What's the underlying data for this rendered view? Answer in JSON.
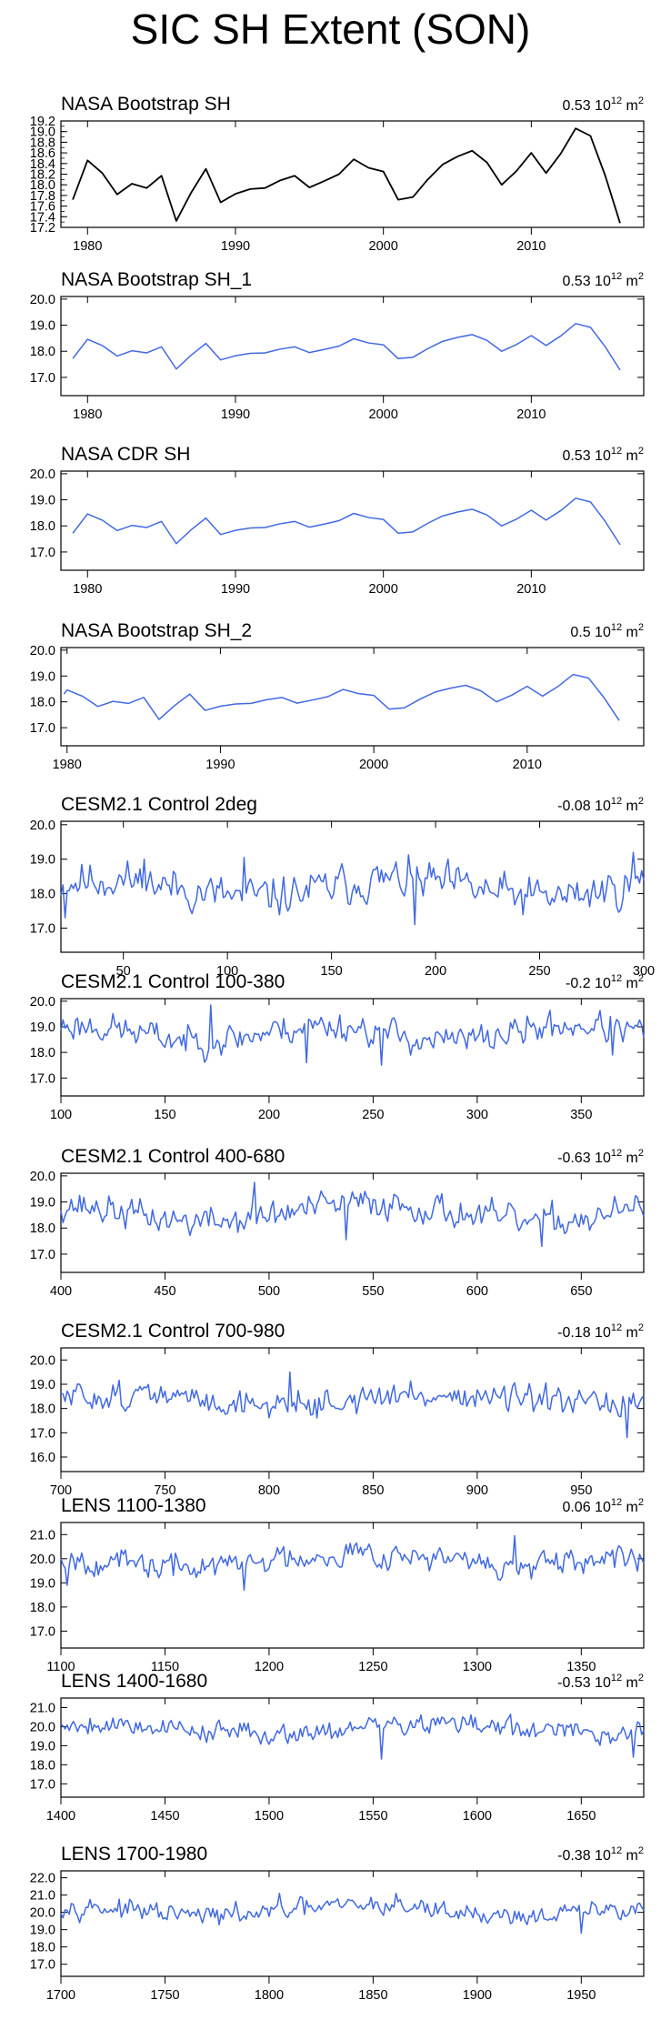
{
  "figure_title": "SIC SH Extent (SON)",
  "chart_data": [
    {
      "type": "line",
      "title": "NASA Bootstrap SH",
      "trend_value": "0.53",
      "trend_unit": "10",
      "trend_exp": "12",
      "trend_unit2": " m",
      "trend_unit2_exp": "2",
      "color": "#000000",
      "xlim": [
        1978.2,
        2017.6
      ],
      "ylim": [
        17.2,
        19.2
      ],
      "yticks": [
        "17.2",
        "17.4",
        "17.6",
        "17.8",
        "18.0",
        "18.2",
        "18.4",
        "18.6",
        "18.8",
        "19.0",
        "19.2"
      ],
      "xticks": [
        "1980",
        "1990",
        "2000",
        "2010"
      ],
      "x": [
        1979,
        1980,
        1981,
        1982,
        1983,
        1984,
        1985,
        1986,
        1987,
        1988,
        1989,
        1990,
        1991,
        1992,
        1993,
        1994,
        1995,
        1996,
        1997,
        1998,
        1999,
        2000,
        2001,
        2002,
        2003,
        2004,
        2005,
        2006,
        2007,
        2008,
        2009,
        2010,
        2011,
        2012,
        2013,
        2014,
        2015,
        2016
      ],
      "values": [
        17.72,
        18.46,
        18.22,
        17.82,
        18.02,
        17.94,
        18.17,
        17.32,
        17.85,
        18.3,
        17.67,
        17.83,
        17.92,
        17.94,
        18.08,
        18.17,
        17.95,
        18.07,
        18.2,
        18.48,
        18.32,
        18.25,
        17.72,
        17.77,
        18.1,
        18.38,
        18.53,
        18.64,
        18.42,
        18.0,
        18.26,
        18.6,
        18.22,
        18.59,
        19.06,
        18.92,
        18.17,
        17.28
      ]
    },
    {
      "type": "line",
      "title": "NASA Bootstrap SH_1",
      "trend_value": "0.53",
      "trend_unit": "10",
      "trend_exp": "12",
      "trend_unit2": " m",
      "trend_unit2_exp": "2",
      "color": "#4169e1",
      "xlim": [
        1978.2,
        2017.6
      ],
      "ylim": [
        16.3,
        20.1
      ],
      "yticks": [
        "17.0",
        "18.0",
        "19.0",
        "20.0"
      ],
      "xticks": [
        "1980",
        "1990",
        "2000",
        "2010"
      ],
      "x": [
        1979,
        1980,
        1981,
        1982,
        1983,
        1984,
        1985,
        1986,
        1987,
        1988,
        1989,
        1990,
        1991,
        1992,
        1993,
        1994,
        1995,
        1996,
        1997,
        1998,
        1999,
        2000,
        2001,
        2002,
        2003,
        2004,
        2005,
        2006,
        2007,
        2008,
        2009,
        2010,
        2011,
        2012,
        2013,
        2014,
        2015,
        2016
      ],
      "values": [
        17.72,
        18.46,
        18.22,
        17.82,
        18.02,
        17.94,
        18.17,
        17.32,
        17.85,
        18.3,
        17.67,
        17.83,
        17.92,
        17.94,
        18.08,
        18.17,
        17.95,
        18.07,
        18.2,
        18.48,
        18.32,
        18.25,
        17.72,
        17.77,
        18.1,
        18.38,
        18.53,
        18.64,
        18.42,
        18.0,
        18.26,
        18.6,
        18.22,
        18.59,
        19.06,
        18.92,
        18.17,
        17.28
      ]
    },
    {
      "type": "line",
      "title": "NASA CDR SH",
      "trend_value": "0.53",
      "trend_unit": "10",
      "trend_exp": "12",
      "trend_unit2": " m",
      "trend_unit2_exp": "2",
      "color": "#4169e1",
      "xlim": [
        1978.2,
        2017.6
      ],
      "ylim": [
        16.3,
        20.1
      ],
      "yticks": [
        "17.0",
        "18.0",
        "19.0",
        "20.0"
      ],
      "xticks": [
        "1980",
        "1990",
        "2000",
        "2010"
      ],
      "x": [
        1979,
        1980,
        1981,
        1982,
        1983,
        1984,
        1985,
        1986,
        1987,
        1988,
        1989,
        1990,
        1991,
        1992,
        1993,
        1994,
        1995,
        1996,
        1997,
        1998,
        1999,
        2000,
        2001,
        2002,
        2003,
        2004,
        2005,
        2006,
        2007,
        2008,
        2009,
        2010,
        2011,
        2012,
        2013,
        2014,
        2015,
        2016
      ],
      "values": [
        17.72,
        18.46,
        18.22,
        17.82,
        18.02,
        17.94,
        18.17,
        17.32,
        17.85,
        18.3,
        17.67,
        17.83,
        17.92,
        17.94,
        18.08,
        18.17,
        17.95,
        18.07,
        18.2,
        18.48,
        18.32,
        18.25,
        17.72,
        17.77,
        18.1,
        18.38,
        18.53,
        18.64,
        18.42,
        18.0,
        18.26,
        18.6,
        18.22,
        18.59,
        19.06,
        18.92,
        18.17,
        17.28
      ]
    },
    {
      "type": "line",
      "title": "NASA Bootstrap SH_2",
      "trend_value": "0.5",
      "trend_unit": "10",
      "trend_exp": "12",
      "trend_unit2": " m",
      "trend_unit2_exp": "2",
      "color": "#4169e1",
      "xlim": [
        1979.6,
        2017.6
      ],
      "ylim": [
        16.3,
        20.1
      ],
      "yticks": [
        "17.0",
        "18.0",
        "19.0",
        "20.0"
      ],
      "xticks": [
        "1980",
        "1990",
        "2000",
        "2010"
      ],
      "x": [
        1979.8,
        1980,
        1981,
        1982,
        1983,
        1984,
        1985,
        1986,
        1987,
        1988,
        1989,
        1990,
        1991,
        1992,
        1993,
        1994,
        1995,
        1996,
        1997,
        1998,
        1999,
        2000,
        2001,
        2002,
        2003,
        2004,
        2005,
        2006,
        2007,
        2008,
        2009,
        2010,
        2011,
        2012,
        2013,
        2014,
        2015,
        2016
      ],
      "values": [
        18.3,
        18.46,
        18.22,
        17.82,
        18.02,
        17.94,
        18.17,
        17.32,
        17.85,
        18.3,
        17.67,
        17.83,
        17.92,
        17.94,
        18.08,
        18.17,
        17.95,
        18.07,
        18.2,
        18.48,
        18.32,
        18.25,
        17.72,
        17.77,
        18.1,
        18.38,
        18.53,
        18.64,
        18.42,
        18.0,
        18.26,
        18.6,
        18.22,
        18.59,
        19.06,
        18.92,
        18.17,
        17.28
      ]
    },
    {
      "type": "line",
      "title": "CESM2.1 Control 2deg",
      "trend_value": "-0.08",
      "trend_unit": "10",
      "trend_exp": "12",
      "trend_unit2": " m",
      "trend_unit2_exp": "2",
      "color": "#4169e1",
      "xlim": [
        20,
        300
      ],
      "ylim": [
        16.3,
        20.1
      ],
      "yticks": [
        "17.0",
        "18.0",
        "19.0",
        "20.0"
      ],
      "xticks": [
        "50",
        "100",
        "150",
        "200",
        "250",
        "300"
      ],
      "generated": {
        "start": 20,
        "end": 300,
        "mean": 18.15,
        "amp": 0.42,
        "wave": 0.25,
        "period": 140,
        "phase": 0.6,
        "seed": 11,
        "anoms": [
          [
            22,
            17.3
          ],
          [
            60,
            19.0
          ],
          [
            108,
            19.05
          ],
          [
            190,
            17.1
          ],
          [
            295,
            19.2
          ]
        ]
      }
    },
    {
      "type": "line",
      "title": "CESM2.1 Control 100-380",
      "trend_value": "-0.2",
      "trend_unit": "10",
      "trend_exp": "12",
      "trend_unit2": " m",
      "trend_unit2_exp": "2",
      "color": "#4169e1",
      "xlim": [
        100,
        380
      ],
      "ylim": [
        16.3,
        20.1
      ],
      "yticks": [
        "17.0",
        "18.0",
        "19.0",
        "20.0"
      ],
      "xticks": [
        "100",
        "150",
        "200",
        "250",
        "300",
        "350"
      ],
      "generated": {
        "start": 100,
        "end": 380,
        "mean": 18.75,
        "amp": 0.42,
        "wave": 0.3,
        "period": 120,
        "phase": 1.2,
        "seed": 23,
        "anoms": [
          [
            172,
            19.85
          ],
          [
            218,
            17.6
          ],
          [
            254,
            17.5
          ],
          [
            365,
            17.9
          ]
        ]
      }
    },
    {
      "type": "line",
      "title": "CESM2.1 Control 400-680",
      "trend_value": "-0.63",
      "trend_unit": "10",
      "trend_exp": "12",
      "trend_unit2": " m",
      "trend_unit2_exp": "2",
      "color": "#4169e1",
      "xlim": [
        400,
        680
      ],
      "ylim": [
        16.3,
        20.1
      ],
      "yticks": [
        "17.0",
        "18.0",
        "19.0",
        "20.0"
      ],
      "xticks": [
        "400",
        "450",
        "500",
        "550",
        "600",
        "650"
      ],
      "generated": {
        "start": 400,
        "end": 680,
        "mean": 18.6,
        "amp": 0.42,
        "wave": 0.35,
        "period": 160,
        "phase": 2.0,
        "seed": 37,
        "anoms": [
          [
            493,
            19.75
          ],
          [
            537,
            17.55
          ],
          [
            631,
            17.3
          ]
        ]
      }
    },
    {
      "type": "line",
      "title": "CESM2.1 Control 700-980",
      "trend_value": "-0.18",
      "trend_unit": "10",
      "trend_exp": "12",
      "trend_unit2": " m",
      "trend_unit2_exp": "2",
      "color": "#4169e1",
      "xlim": [
        700,
        980
      ],
      "ylim": [
        15.4,
        20.5
      ],
      "yticks": [
        "16.0",
        "17.0",
        "18.0",
        "19.0",
        "20.0"
      ],
      "xticks": [
        "700",
        "750",
        "800",
        "850",
        "900",
        "950"
      ],
      "generated": {
        "start": 700,
        "end": 980,
        "mean": 18.35,
        "amp": 0.42,
        "wave": 0.2,
        "period": 150,
        "phase": 0.3,
        "seed": 51,
        "anoms": [
          [
            810,
            19.5
          ],
          [
            972,
            16.8
          ]
        ]
      }
    },
    {
      "type": "line",
      "title": "LENS 1100-1380",
      "trend_value": "0.06",
      "trend_unit": "10",
      "trend_exp": "12",
      "trend_unit2": " m",
      "trend_unit2_exp": "2",
      "color": "#4169e1",
      "xlim": [
        1100,
        1380
      ],
      "ylim": [
        16.3,
        21.5
      ],
      "yticks": [
        "17.0",
        "18.0",
        "19.0",
        "20.0",
        "21.0"
      ],
      "xticks": [
        "1100",
        "1150",
        "1200",
        "1250",
        "1300",
        "1350"
      ],
      "generated": {
        "start": 1100,
        "end": 1380,
        "mean": 19.95,
        "amp": 0.4,
        "wave": 0.3,
        "period": 170,
        "phase": 2.6,
        "seed": 67,
        "anoms": [
          [
            1103,
            18.9
          ],
          [
            1188,
            18.7
          ],
          [
            1318,
            20.95
          ]
        ]
      }
    },
    {
      "type": "line",
      "title": "LENS 1400-1680",
      "trend_value": "-0.53",
      "trend_unit": "10",
      "trend_exp": "12",
      "trend_unit2": " m",
      "trend_unit2_exp": "2",
      "color": "#4169e1",
      "xlim": [
        1400,
        1680
      ],
      "ylim": [
        16.3,
        21.5
      ],
      "yticks": [
        "17.0",
        "18.0",
        "19.0",
        "20.0",
        "21.0"
      ],
      "xticks": [
        "1400",
        "1450",
        "1500",
        "1550",
        "1600",
        "1650"
      ],
      "generated": {
        "start": 1400,
        "end": 1680,
        "mean": 19.9,
        "amp": 0.4,
        "wave": 0.25,
        "period": 160,
        "phase": 0.9,
        "seed": 79,
        "anoms": [
          [
            1554,
            18.3
          ],
          [
            1675,
            18.4
          ]
        ]
      }
    },
    {
      "type": "line",
      "title": "LENS 1700-1980",
      "trend_value": "-0.38",
      "trend_unit": "10",
      "trend_exp": "12",
      "trend_unit2": " m",
      "trend_unit2_exp": "2",
      "color": "#4169e1",
      "xlim": [
        1700,
        1980
      ],
      "ylim": [
        16.3,
        22.4
      ],
      "yticks": [
        "17.0",
        "18.0",
        "19.0",
        "20.0",
        "21.0",
        "22.0"
      ],
      "xticks": [
        "1700",
        "1750",
        "1800",
        "1850",
        "1900",
        "1950"
      ],
      "generated": {
        "start": 1700,
        "end": 1980,
        "mean": 20.1,
        "amp": 0.4,
        "wave": 0.3,
        "period": 150,
        "phase": 1.7,
        "seed": 97,
        "anoms": [
          [
            1805,
            21.1
          ],
          [
            1861,
            21.1
          ],
          [
            1950,
            18.8
          ]
        ]
      }
    }
  ]
}
